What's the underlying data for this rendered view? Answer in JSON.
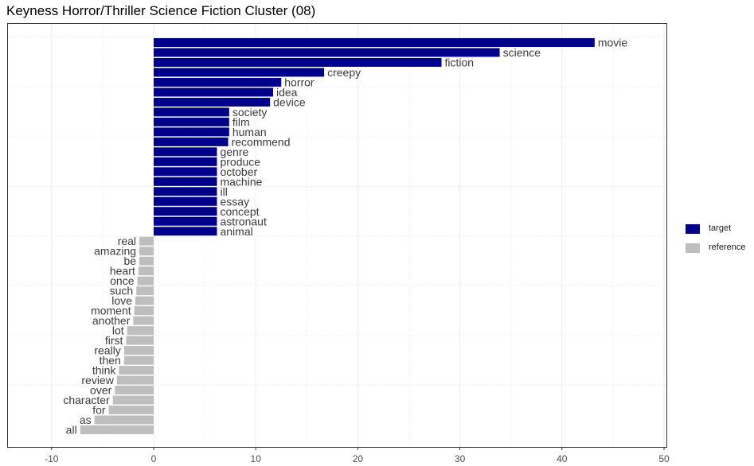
{
  "title": "Keyness Horror/Thriller Science Fiction Cluster (08)",
  "legend": [
    {
      "label": "target",
      "color": "#00008b"
    },
    {
      "label": "reference",
      "color": "#bebebe"
    }
  ],
  "chart_data": {
    "type": "bar",
    "orientation": "horizontal",
    "title": "Keyness Horror/Thriller Science Fiction Cluster (08)",
    "xlabel": "",
    "ylabel": "",
    "xlim": [
      -10,
      50
    ],
    "x_ticks": [
      -10,
      0,
      10,
      20,
      30,
      40,
      50
    ],
    "grid": true,
    "legend_position": "right",
    "series": [
      {
        "name": "target",
        "color": "#00008b"
      },
      {
        "name": "reference",
        "color": "#bebebe"
      }
    ],
    "bars": [
      {
        "label": "movie",
        "value": 43.2,
        "group": "target"
      },
      {
        "label": "science",
        "value": 33.9,
        "group": "target"
      },
      {
        "label": "fiction",
        "value": 28.2,
        "group": "target"
      },
      {
        "label": "creepy",
        "value": 16.7,
        "group": "target"
      },
      {
        "label": "horror",
        "value": 12.5,
        "group": "target"
      },
      {
        "label": "idea",
        "value": 11.7,
        "group": "target"
      },
      {
        "label": "device",
        "value": 11.4,
        "group": "target"
      },
      {
        "label": "society",
        "value": 7.4,
        "group": "target"
      },
      {
        "label": "film",
        "value": 7.4,
        "group": "target"
      },
      {
        "label": "human",
        "value": 7.4,
        "group": "target"
      },
      {
        "label": "recommend",
        "value": 7.3,
        "group": "target"
      },
      {
        "label": "genre",
        "value": 6.2,
        "group": "target"
      },
      {
        "label": "produce",
        "value": 6.2,
        "group": "target"
      },
      {
        "label": "october",
        "value": 6.2,
        "group": "target"
      },
      {
        "label": "machine",
        "value": 6.2,
        "group": "target"
      },
      {
        "label": "ill",
        "value": 6.2,
        "group": "target"
      },
      {
        "label": "essay",
        "value": 6.2,
        "group": "target"
      },
      {
        "label": "concept",
        "value": 6.2,
        "group": "target"
      },
      {
        "label": "astronaut",
        "value": 6.2,
        "group": "target"
      },
      {
        "label": "animal",
        "value": 6.2,
        "group": "target"
      },
      {
        "label": "real",
        "value": -1.4,
        "group": "reference"
      },
      {
        "label": "amazing",
        "value": -1.4,
        "group": "reference"
      },
      {
        "label": "be",
        "value": -1.4,
        "group": "reference"
      },
      {
        "label": "heart",
        "value": -1.5,
        "group": "reference"
      },
      {
        "label": "once",
        "value": -1.6,
        "group": "reference"
      },
      {
        "label": "such",
        "value": -1.7,
        "group": "reference"
      },
      {
        "label": "love",
        "value": -1.8,
        "group": "reference"
      },
      {
        "label": "moment",
        "value": -1.9,
        "group": "reference"
      },
      {
        "label": "another",
        "value": -2.0,
        "group": "reference"
      },
      {
        "label": "lot",
        "value": -2.6,
        "group": "reference"
      },
      {
        "label": "first",
        "value": -2.7,
        "group": "reference"
      },
      {
        "label": "really",
        "value": -2.9,
        "group": "reference"
      },
      {
        "label": "then",
        "value": -2.9,
        "group": "reference"
      },
      {
        "label": "think",
        "value": -3.4,
        "group": "reference"
      },
      {
        "label": "review",
        "value": -3.6,
        "group": "reference"
      },
      {
        "label": "over",
        "value": -3.8,
        "group": "reference"
      },
      {
        "label": "character",
        "value": -4.0,
        "group": "reference"
      },
      {
        "label": "for",
        "value": -4.4,
        "group": "reference"
      },
      {
        "label": "as",
        "value": -5.8,
        "group": "reference"
      },
      {
        "label": "all",
        "value": -7.2,
        "group": "reference"
      }
    ]
  }
}
